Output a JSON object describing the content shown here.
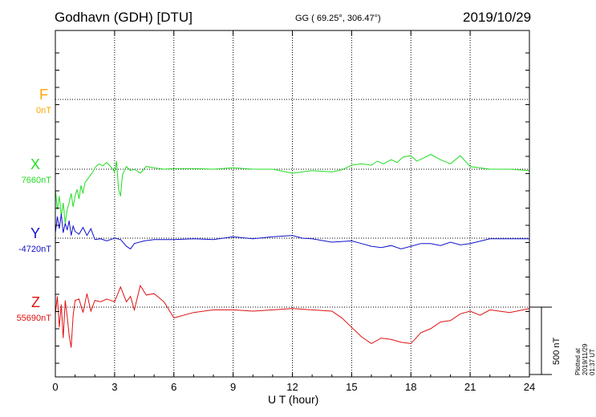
{
  "header": {
    "station": "Godhavn (GDH)  [DTU]",
    "coords": "GG ( 69.25°, 306.47°)",
    "date": "2019/10/29"
  },
  "footer": {
    "plotted": "Plotted at 2019/11/29 01:37 UT"
  },
  "colors": {
    "F": "#ffa500",
    "X": "#22dd22",
    "Y": "#1111cc",
    "Z": "#dd1111",
    "axis": "#000000"
  },
  "chart_data": {
    "type": "line",
    "title": "Godhavn (GDH)  [DTU]",
    "xlabel": "U T (hour)",
    "ylabel": "",
    "xlim": [
      0,
      24
    ],
    "x_ticks": [
      0,
      3,
      6,
      9,
      12,
      15,
      18,
      21,
      24
    ],
    "grid": true,
    "scale_bar": {
      "label": "500 nT",
      "value_nT": 500
    },
    "components": [
      {
        "name": "F",
        "baseline": "0nT",
        "color": "#ffa500",
        "x": [],
        "values": []
      },
      {
        "name": "X",
        "baseline": "7660nT",
        "color": "#22dd22",
        "x": [
          0,
          0.1,
          0.2,
          0.3,
          0.4,
          0.5,
          0.6,
          0.7,
          0.8,
          0.9,
          1.0,
          1.1,
          1.2,
          1.3,
          1.4,
          1.5,
          1.6,
          1.7,
          1.8,
          1.9,
          2.0,
          2.2,
          2.4,
          2.6,
          2.8,
          3.0,
          3.1,
          3.2,
          3.3,
          3.4,
          3.5,
          3.6,
          3.8,
          4.0,
          4.3,
          4.6,
          5.0,
          5.5,
          6,
          7,
          8,
          9,
          10,
          11,
          12,
          12.5,
          13,
          14,
          14.5,
          15,
          15.5,
          16,
          16.3,
          16.6,
          17,
          17.3,
          17.6,
          18,
          18.3,
          18.6,
          19,
          19.5,
          20,
          20.5,
          21,
          22,
          23,
          24
        ],
        "values": [
          -150,
          -300,
          -200,
          -350,
          -250,
          -400,
          -300,
          -250,
          -180,
          -280,
          -200,
          -150,
          -220,
          -120,
          -180,
          -100,
          -80,
          -60,
          -40,
          -20,
          10,
          40,
          25,
          50,
          20,
          -20,
          60,
          -150,
          -200,
          -40,
          -10,
          20,
          -10,
          0,
          -30,
          20,
          10,
          0,
          5,
          5,
          0,
          10,
          0,
          0,
          -30,
          -20,
          -10,
          -20,
          -5,
          30,
          40,
          30,
          60,
          40,
          70,
          50,
          90,
          100,
          60,
          80,
          110,
          70,
          40,
          100,
          20,
          0,
          0,
          -10
        ]
      },
      {
        "name": "Y",
        "baseline": "-4720nT",
        "color": "#1111cc",
        "x": [
          0,
          0.1,
          0.2,
          0.3,
          0.4,
          0.5,
          0.6,
          0.7,
          0.8,
          0.9,
          1.0,
          1.2,
          1.4,
          1.6,
          1.8,
          2.0,
          2.3,
          2.6,
          3.0,
          3.3,
          3.6,
          3.8,
          4.0,
          4.5,
          5,
          5.5,
          6,
          7,
          8,
          9,
          10,
          11,
          12,
          12.5,
          13,
          14,
          15,
          15.5,
          16,
          16.5,
          17,
          17.5,
          18,
          18.5,
          19,
          19.5,
          20,
          20.5,
          21,
          22,
          23,
          24
        ],
        "values": [
          40,
          160,
          70,
          180,
          40,
          110,
          60,
          130,
          20,
          90,
          50,
          30,
          80,
          20,
          70,
          -10,
          -5,
          -20,
          0,
          -10,
          -60,
          -80,
          -40,
          -20,
          -10,
          -10,
          -10,
          -5,
          -10,
          10,
          -5,
          10,
          20,
          0,
          -5,
          -30,
          -20,
          -40,
          -60,
          -70,
          -55,
          -80,
          -60,
          -40,
          -40,
          -55,
          -30,
          -50,
          -40,
          -5,
          -5,
          -5
        ]
      },
      {
        "name": "Z",
        "baseline": "55690nT",
        "color": "#dd1111",
        "x": [
          0,
          0.1,
          0.2,
          0.3,
          0.4,
          0.5,
          0.6,
          0.7,
          0.8,
          0.9,
          1.0,
          1.2,
          1.4,
          1.6,
          1.8,
          2.0,
          2.3,
          2.6,
          3.0,
          3.3,
          3.6,
          3.8,
          4.0,
          4.3,
          4.6,
          5.0,
          5.5,
          6,
          7,
          8,
          9,
          10,
          11,
          12,
          13,
          14,
          14.5,
          15,
          15.5,
          16,
          16.5,
          17,
          17.5,
          18,
          18.5,
          19,
          19.5,
          20,
          20.5,
          21,
          21.5,
          22,
          23,
          24
        ],
        "values": [
          -50,
          80,
          -150,
          20,
          -230,
          50,
          -70,
          -210,
          -300,
          -60,
          50,
          60,
          -40,
          100,
          -30,
          50,
          40,
          60,
          40,
          150,
          40,
          80,
          -20,
          160,
          90,
          100,
          40,
          -80,
          -40,
          -20,
          -20,
          -30,
          -20,
          -10,
          -20,
          -30,
          -80,
          -150,
          -220,
          -270,
          -230,
          -240,
          -260,
          -270,
          -190,
          -160,
          -110,
          -100,
          -50,
          -30,
          -60,
          -20,
          -40,
          -10
        ]
      }
    ]
  }
}
